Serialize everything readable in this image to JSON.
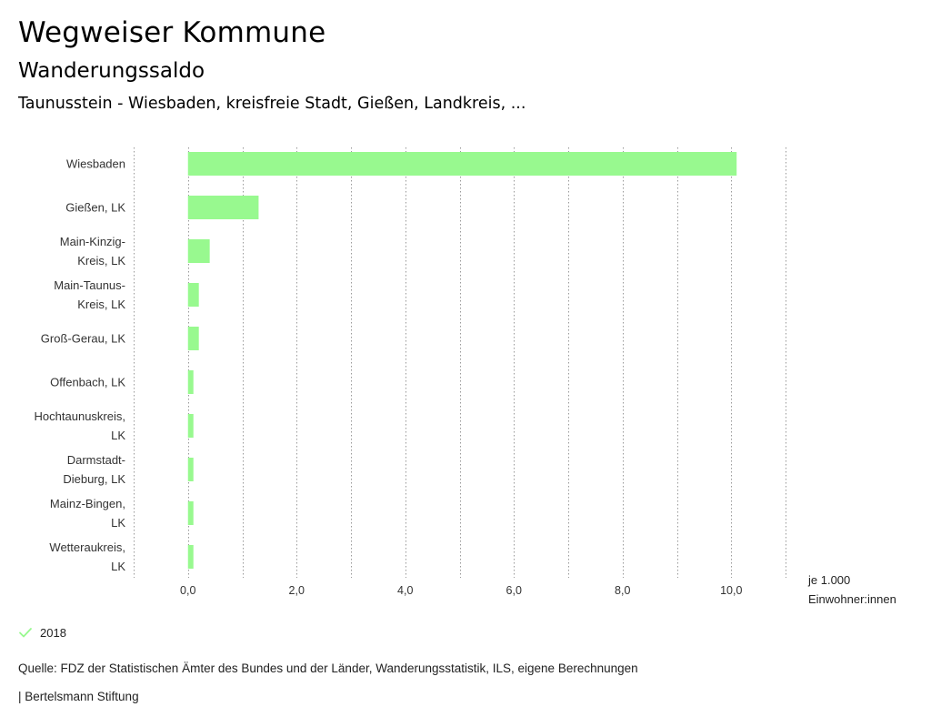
{
  "header": {
    "title": "Wegweiser Kommune",
    "subtitle": "Wanderungssaldo",
    "region": "Taunusstein - Wiesbaden, kreisfreie Stadt, Gießen, Landkreis, ..."
  },
  "chart_data": {
    "type": "bar",
    "orientation": "horizontal",
    "categories": [
      [
        "Wiesbaden"
      ],
      [
        "Gießen, LK"
      ],
      [
        "Main-Kinzig-",
        "Kreis, LK"
      ],
      [
        "Main-Taunus-",
        "Kreis, LK"
      ],
      [
        "Groß-Gerau, LK"
      ],
      [
        "Offenbach, LK"
      ],
      [
        "Hochtaunuskreis,",
        "LK"
      ],
      [
        "Darmstadt-",
        "Dieburg, LK"
      ],
      [
        "Mainz-Bingen,",
        "LK"
      ],
      [
        "Wetteraukreis,",
        "LK"
      ]
    ],
    "series": [
      {
        "name": "2018",
        "values": [
          10.1,
          1.3,
          0.4,
          0.2,
          0.2,
          0.1,
          0.1,
          0.1,
          0.1,
          0.1
        ]
      }
    ],
    "xlim": [
      -1.0,
      11.0
    ],
    "xticks": [
      0,
      2,
      4,
      6,
      8,
      10
    ],
    "xtick_labels": [
      "0,0",
      "2,0",
      "4,0",
      "6,0",
      "8,0",
      "10,0"
    ],
    "grid_ticks": [
      -1,
      0,
      1,
      2,
      3,
      4,
      5,
      6,
      7,
      8,
      9,
      10,
      11
    ],
    "unit_label": [
      "je 1.000",
      "Einwohner:innen"
    ],
    "bar_color": "#98f98f",
    "grid": true
  },
  "legend": {
    "label": "2018",
    "color": "#98f98f"
  },
  "footer": {
    "source": "Quelle: FDZ der Statistischen Ämter des Bundes und der Länder, Wanderungsstatistik, ILS, eigene Berechnungen",
    "copyright": "| Bertelsmann Stiftung"
  }
}
